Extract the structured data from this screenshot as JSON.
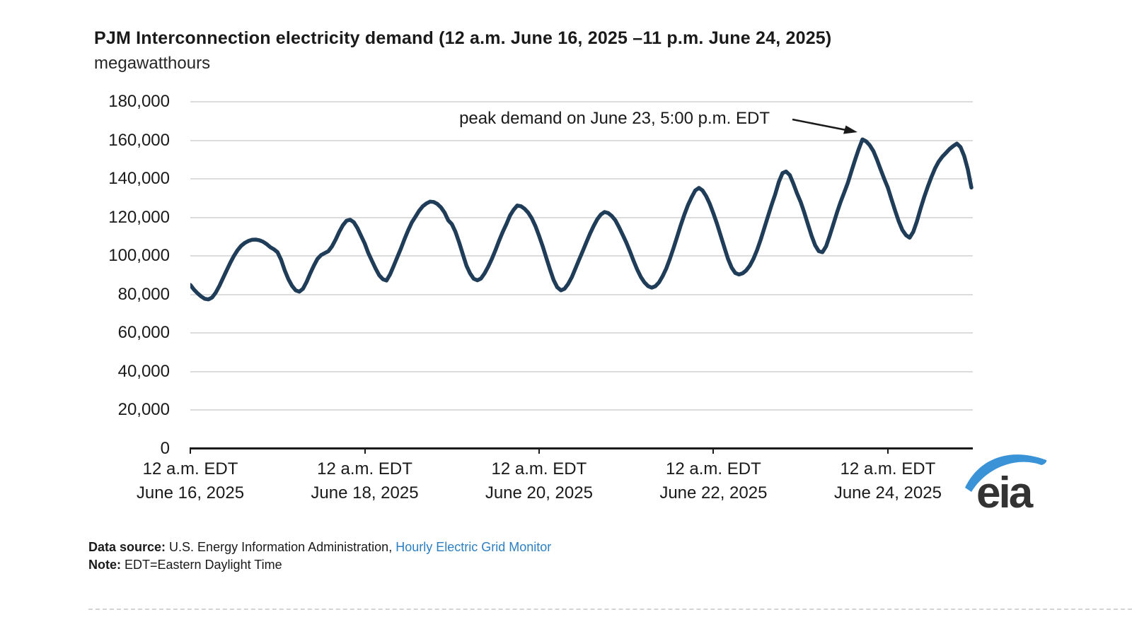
{
  "header": {
    "title": "PJM Interconnection electricity demand (12 a.m. June 16, 2025 –11 p.m. June 24, 2025)",
    "subtitle": "megawatthours"
  },
  "annotation": {
    "text": "peak demand on June 23, 5:00 p.m. EDT"
  },
  "footer": {
    "source_label": "Data source:",
    "source_text": " U.S. Energy Information Administration, ",
    "source_link": "Hourly Electric Grid Monitor",
    "note_label": "Note:",
    "note_text": " EDT=Eastern Daylight Time"
  },
  "logo": {
    "text": "eia"
  },
  "colors": {
    "line": "#1f3d58",
    "grid": "#dcdcdc",
    "axis": "#1a1a1a",
    "link": "#2d7fc1",
    "logo_text": "#333333",
    "logo_swoosh": "#3a93d6"
  },
  "chart_data": {
    "type": "line",
    "title": "PJM Interconnection electricity demand (12 a.m. June 16, 2025 –11 p.m. June 24, 2025)",
    "ylabel": "megawatthours",
    "xlabel": "",
    "ylim": [
      0,
      180000
    ],
    "grid": "horizontal",
    "legend": "none",
    "x_unit": "hour",
    "x_range_hours": [
      0,
      215
    ],
    "y_ticks": [
      {
        "value": 0,
        "label": "0"
      },
      {
        "value": 20000,
        "label": "20,000"
      },
      {
        "value": 40000,
        "label": "40,000"
      },
      {
        "value": 60000,
        "label": "60,000"
      },
      {
        "value": 80000,
        "label": "80,000"
      },
      {
        "value": 100000,
        "label": "100,000"
      },
      {
        "value": 120000,
        "label": "120,000"
      },
      {
        "value": 140000,
        "label": "140,000"
      },
      {
        "value": 160000,
        "label": "160,000"
      },
      {
        "value": 180000,
        "label": "180,000"
      }
    ],
    "x_ticks": [
      {
        "hour": 0,
        "time": "12 a.m. EDT",
        "date": "June 16, 2025"
      },
      {
        "hour": 48,
        "time": "12 a.m. EDT",
        "date": "June 18, 2025"
      },
      {
        "hour": 96,
        "time": "12 a.m. EDT",
        "date": "June 20, 2025"
      },
      {
        "hour": 144,
        "time": "12 a.m. EDT",
        "date": "June 22, 2025"
      },
      {
        "hour": 192,
        "time": "12 a.m. EDT",
        "date": "June 24, 2025"
      }
    ],
    "peak": {
      "value": 160500,
      "hour_index": 185,
      "label": "peak demand on June 23, 5:00 p.m. EDT"
    },
    "series": [
      {
        "name": "PJM Interconnection hourly electricity demand (MWh)",
        "values": [
          85000,
          82600,
          80600,
          79000,
          77800,
          77500,
          78500,
          81000,
          84500,
          88500,
          92500,
          96500,
          100000,
          103000,
          105300,
          106800,
          107800,
          108400,
          108500,
          108200,
          107400,
          106200,
          104600,
          103500,
          102000,
          98000,
          92500,
          88000,
          84500,
          82200,
          81500,
          83000,
          86500,
          91000,
          95000,
          98500,
          100500,
          101500,
          102500,
          105000,
          108500,
          112500,
          116000,
          118300,
          118800,
          117500,
          114500,
          110500,
          106500,
          101500,
          97500,
          93500,
          90000,
          88000,
          87300,
          90500,
          95000,
          99500,
          104000,
          109000,
          113500,
          117500,
          120500,
          123500,
          125800,
          127300,
          128200,
          128000,
          127000,
          125200,
          122500,
          118500,
          116500,
          112500,
          107000,
          101000,
          95000,
          91000,
          88200,
          87400,
          88300,
          91000,
          94500,
          98500,
          103000,
          108000,
          112500,
          116500,
          121000,
          124000,
          126200,
          125800,
          124500,
          122500,
          119500,
          115500,
          110500,
          105000,
          99000,
          93000,
          87500,
          83800,
          82200,
          83000,
          85500,
          89000,
          93500,
          98000,
          102500,
          107000,
          111500,
          115500,
          119000,
          121500,
          122800,
          122300,
          120800,
          118500,
          115000,
          111000,
          107000,
          102500,
          97500,
          93000,
          89200,
          86300,
          84400,
          83600,
          84300,
          86300,
          89500,
          93500,
          98500,
          104000,
          110000,
          116000,
          121500,
          126500,
          130500,
          134000,
          135300,
          134000,
          131000,
          127000,
          122000,
          116500,
          110500,
          104500,
          98500,
          94000,
          91200,
          90400,
          91000,
          92500,
          95000,
          98500,
          103000,
          108500,
          114500,
          120500,
          126500,
          132000,
          138500,
          143000,
          143800,
          142000,
          137500,
          132500,
          128000,
          122500,
          116500,
          110500,
          105500,
          102500,
          102000,
          105000,
          110500,
          116500,
          122500,
          128000,
          133000,
          138000,
          144000,
          150000,
          155500,
          160500,
          159500,
          157500,
          154500,
          150000,
          145000,
          140000,
          135500,
          129500,
          123500,
          118000,
          113500,
          110800,
          109500,
          112500,
          118000,
          124500,
          130500,
          136000,
          141000,
          145500,
          149000,
          151500,
          153500,
          155500,
          157000,
          158300,
          156500,
          152000,
          145000,
          135500
        ]
      }
    ]
  }
}
